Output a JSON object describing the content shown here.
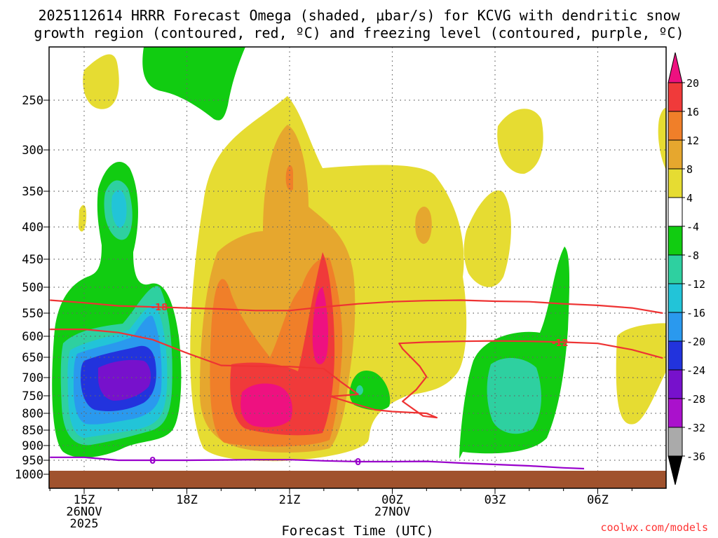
{
  "title_line1": "2025112614 HRRR Forecast Omega (shaded, μbar/s) for KCVG with dendritic snow",
  "title_line2": "growth region (contoured, red, ºC) and freezing level (contoured, purple, ºC)",
  "credit": "coolwx.com/models",
  "colors": {
    "ground": "#a0522d",
    "contour_red": "#ee3333",
    "contour_purple": "#9900cc",
    "grid": "#666666"
  },
  "chart_data": {
    "type": "contour",
    "title": "2025112614 HRRR Forecast Omega (shaded, μbar/s) for KCVG with dendritic snow growth region (contoured, red, ºC) and freezing level (contoured, purple, ºC)",
    "xlabel": "Forecast Time (UTC)",
    "ylabel": "",
    "xticks": [
      {
        "value": 15,
        "label": [
          "15Z",
          "26NOV",
          "2025"
        ]
      },
      {
        "value": 18,
        "label": [
          "18Z"
        ]
      },
      {
        "value": 21,
        "label": [
          "21Z"
        ]
      },
      {
        "value": 24,
        "label": [
          "00Z",
          "27NOV"
        ]
      },
      {
        "value": 27,
        "label": [
          "03Z"
        ]
      },
      {
        "value": 30,
        "label": [
          "06Z"
        ]
      }
    ],
    "xlim": [
      14.0,
      31.9
    ],
    "ylim": [
      1000,
      200
    ],
    "yticks": [
      250,
      300,
      350,
      400,
      450,
      500,
      550,
      600,
      650,
      700,
      750,
      800,
      850,
      900,
      950,
      1000
    ],
    "colorbar": {
      "ticks": [
        20,
        16,
        12,
        8,
        4,
        -4,
        -8,
        -12,
        -16,
        -20,
        -24,
        -28,
        -32,
        -36
      ],
      "bins": [
        {
          "range": [
            20,
            24
          ],
          "color": "#ee1180"
        },
        {
          "range": [
            16,
            20
          ],
          "color": "#f03a3a"
        },
        {
          "range": [
            12,
            16
          ],
          "color": "#f07f29"
        },
        {
          "range": [
            8,
            12
          ],
          "color": "#e6a72e"
        },
        {
          "range": [
            4,
            8
          ],
          "color": "#e6dc32"
        },
        {
          "range": [
            -4,
            4
          ],
          "color": "#ffffff"
        },
        {
          "range": [
            -8,
            -4
          ],
          "color": "#11cc11"
        },
        {
          "range": [
            -12,
            -8
          ],
          "color": "#2ed0a0"
        },
        {
          "range": [
            -16,
            -12
          ],
          "color": "#22c4d8"
        },
        {
          "range": [
            -20,
            -16
          ],
          "color": "#2a99ee"
        },
        {
          "range": [
            -24,
            -20
          ],
          "color": "#2233dd"
        },
        {
          "range": [
            -28,
            -24
          ],
          "color": "#7711cc"
        },
        {
          "range": [
            -32,
            -28
          ],
          "color": "#aa11cc"
        },
        {
          "range": [
            -36,
            -32
          ],
          "color": "#aaaaaa"
        }
      ]
    },
    "contours": [
      {
        "name": "-18",
        "kind": "temperature",
        "color": "#ee3333",
        "label": "-18",
        "label_at": [
          17.2,
          538
        ],
        "points": [
          [
            14.0,
            525
          ],
          [
            15,
            530
          ],
          [
            16,
            536
          ],
          [
            17,
            538
          ],
          [
            18,
            540
          ],
          [
            19,
            542
          ],
          [
            20,
            545
          ],
          [
            21,
            545
          ],
          [
            22,
            538
          ],
          [
            23,
            532
          ],
          [
            24,
            528
          ],
          [
            25,
            526
          ],
          [
            26,
            525
          ],
          [
            27,
            527
          ],
          [
            28,
            528
          ],
          [
            29,
            532
          ],
          [
            30,
            535
          ],
          [
            31,
            540
          ],
          [
            31.9,
            550
          ]
        ]
      },
      {
        "name": "-12",
        "kind": "temperature",
        "color": "#ee3333",
        "label": "-12",
        "label_at": [
          28.9,
          615
        ],
        "points": [
          [
            14.0,
            585
          ],
          [
            15,
            585
          ],
          [
            16,
            592
          ],
          [
            17,
            608
          ],
          [
            18,
            640
          ],
          [
            19,
            670
          ],
          [
            20,
            672
          ],
          [
            21,
            673
          ],
          [
            22,
            678
          ],
          [
            22.5,
            712
          ],
          [
            23,
            746
          ],
          [
            22.2,
            752
          ],
          [
            23,
            776
          ],
          [
            23.5,
            790
          ],
          [
            24,
            795
          ],
          [
            25,
            800
          ],
          [
            25.3,
            813
          ],
          [
            24.9,
            808
          ],
          [
            24.3,
            766
          ],
          [
            24.7,
            733
          ],
          [
            25,
            698
          ],
          [
            24.8,
            672
          ],
          [
            24.3,
            630
          ],
          [
            24.2,
            617
          ],
          [
            25,
            614
          ],
          [
            26,
            612
          ],
          [
            27,
            611
          ],
          [
            28,
            612
          ],
          [
            29,
            614
          ],
          [
            30,
            617
          ],
          [
            31,
            632
          ],
          [
            31.9,
            652
          ]
        ]
      },
      {
        "name": "0",
        "kind": "freezing_level",
        "color": "#9900cc",
        "label": "0",
        "label_at": [
          17.0,
          950
        ],
        "label2": "0",
        "label2_at": [
          23.0,
          955
        ],
        "points": [
          [
            14.0,
            940
          ],
          [
            15,
            940
          ],
          [
            16,
            950
          ],
          [
            17,
            950
          ],
          [
            18,
            950
          ],
          [
            19,
            949
          ],
          [
            20,
            948
          ],
          [
            21,
            948
          ],
          [
            22,
            952
          ],
          [
            23,
            955
          ],
          [
            24,
            955
          ],
          [
            25,
            954
          ],
          [
            26,
            960
          ],
          [
            27,
            965
          ],
          [
            28,
            970
          ],
          [
            29,
            977
          ],
          [
            29.6,
            980
          ]
        ]
      }
    ],
    "omega_regions": [
      {
        "value": "-4 to -8",
        "color": "#11cc11",
        "center": [
          15.5,
          640
        ],
        "note": "low-level upward motion core"
      },
      {
        "value": "-24 to -28",
        "color": "#7711cc",
        "center": [
          16.0,
          695
        ],
        "note": "strongest upward motion"
      },
      {
        "value": "20+",
        "color": "#ee1180",
        "center": [
          20.0,
          780
        ],
        "note": "strongest downward motion"
      },
      {
        "value": "20+",
        "color": "#ee1180",
        "center": [
          21.3,
          560
        ],
        "note": "downward motion core aloft"
      }
    ]
  }
}
